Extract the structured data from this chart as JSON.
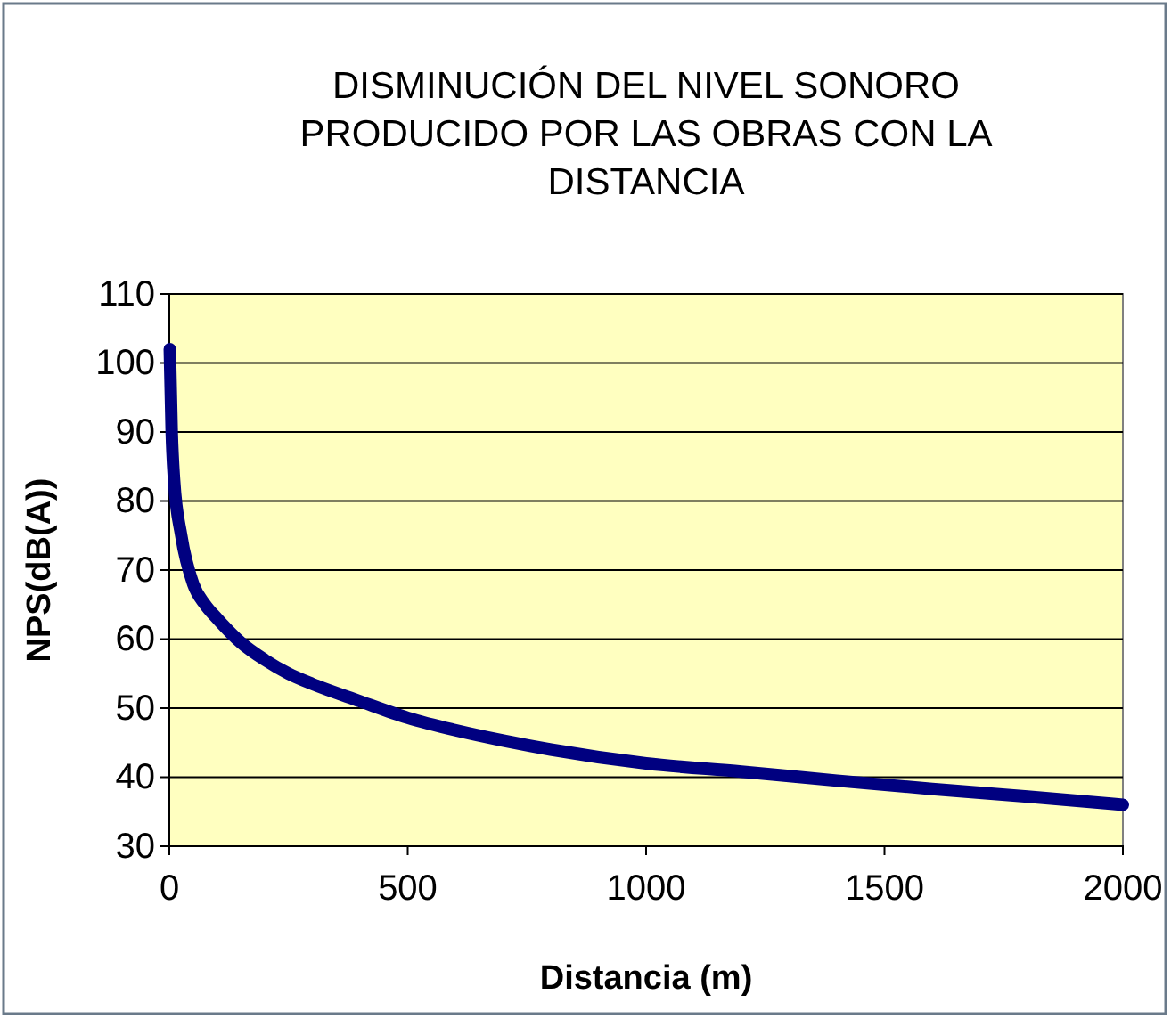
{
  "chart_data": {
    "type": "line",
    "title": "DISMINUCIÓN DEL NIVEL SONORO PRODUCIDO POR LAS OBRAS CON LA DISTANCIA",
    "xlabel": "Distancia (m)",
    "ylabel": "NPS(dB(A))",
    "series": [
      {
        "color": "#000080",
        "x": [
          1,
          5,
          10,
          25,
          50,
          75,
          100,
          150,
          200,
          250,
          300,
          400,
          500,
          600,
          700,
          800,
          1000,
          1200,
          1400,
          1600,
          1800,
          2000
        ],
        "values": [
          102,
          90,
          83,
          75,
          68,
          65,
          63,
          59.5,
          57,
          55,
          53.5,
          51,
          48.6,
          46.8,
          45.3,
          44,
          42,
          40.8,
          39.5,
          38.3,
          37.2,
          36
        ]
      }
    ],
    "xlim": [
      0,
      2000
    ],
    "xticks": [
      0,
      500,
      1000,
      1500,
      2000
    ],
    "ylim": [
      30,
      110
    ],
    "yticks": [
      30,
      40,
      50,
      60,
      70,
      80,
      90,
      100,
      110
    ],
    "grid": "y",
    "marker": "none",
    "line_style": "solid"
  }
}
